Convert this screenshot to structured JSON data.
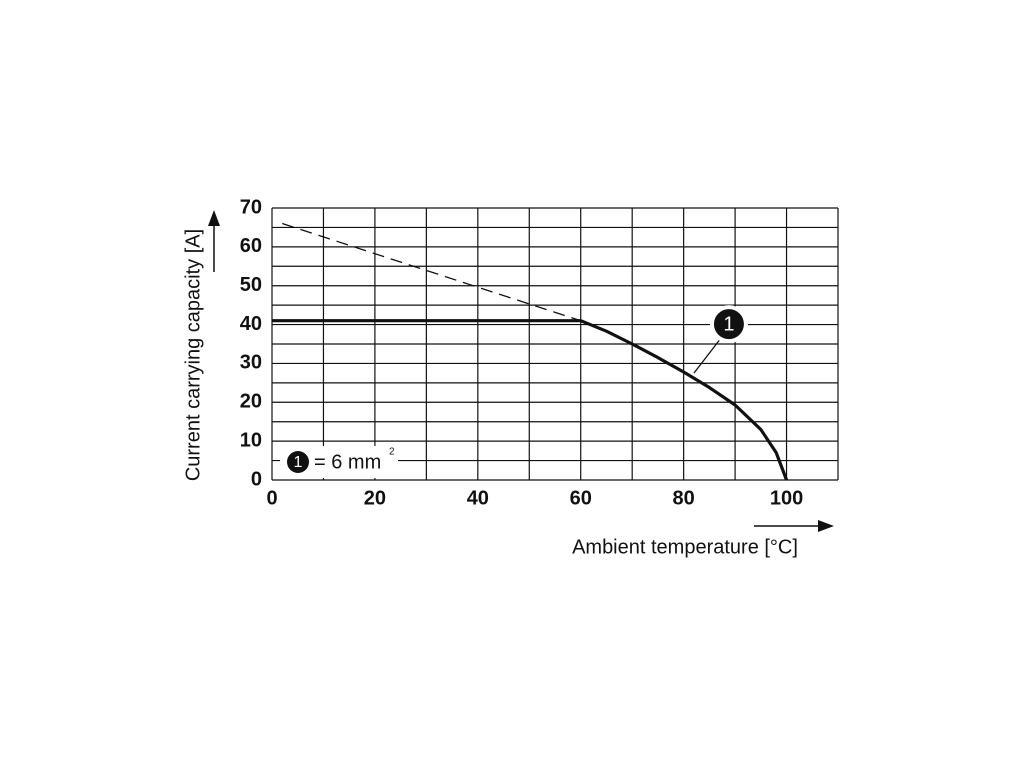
{
  "chart_data": {
    "type": "line",
    "xlabel": "Ambient temperature [°C]",
    "ylabel": "Current carrying capacity [A]",
    "xlim": [
      0,
      110
    ],
    "ylim": [
      0,
      70
    ],
    "xticks": [
      0,
      20,
      40,
      60,
      80,
      100
    ],
    "yticks": [
      0,
      10,
      20,
      30,
      40,
      50,
      60,
      70
    ],
    "minor_xticks": [
      0,
      10,
      20,
      30,
      40,
      50,
      60,
      70,
      80,
      90,
      100,
      110
    ],
    "minor_yticks": [
      0,
      5,
      10,
      15,
      20,
      25,
      30,
      35,
      40,
      45,
      50,
      55,
      60,
      65,
      70
    ],
    "grid": true,
    "series": [
      {
        "linestyle": "solid",
        "color": "#111111",
        "x": [
          0,
          60,
          65,
          70,
          75,
          80,
          85,
          90,
          95,
          98,
          100
        ],
        "values": [
          41,
          41,
          38.3,
          35,
          31.5,
          27.8,
          23.8,
          19.3,
          13,
          7,
          0
        ]
      },
      {
        "linestyle": "dashed",
        "color": "#111111",
        "x": [
          2,
          60
        ],
        "values": [
          66,
          41
        ]
      }
    ],
    "legend": {
      "marker": "1",
      "text": "= 6 mm",
      "superscript": "2"
    },
    "annotation": {
      "text": "1",
      "xy": [
        82,
        27.5
      ]
    }
  }
}
